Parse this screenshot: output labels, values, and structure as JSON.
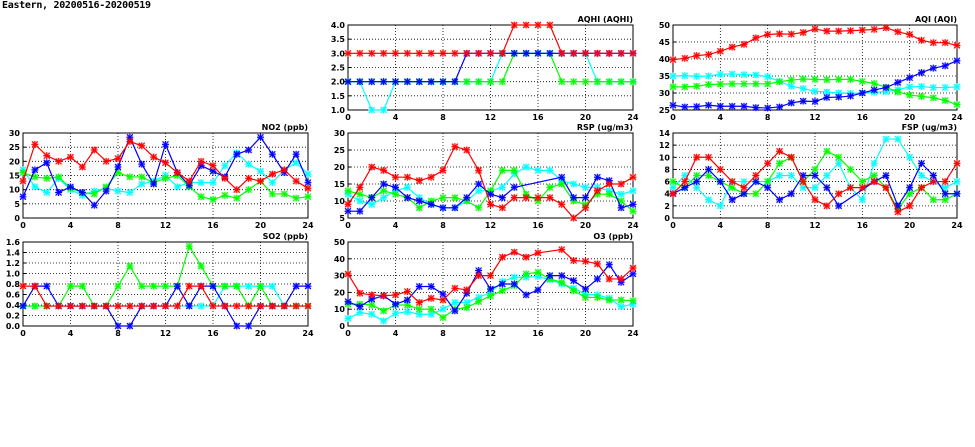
{
  "page_title": "Eastern, 20200516-20200519",
  "chart_data": [
    {
      "type": "line",
      "title": "AQHI (AQHI)",
      "xlim": [
        0,
        24
      ],
      "xticks": [
        0,
        4,
        8,
        12,
        16,
        20,
        24
      ],
      "ylim": [
        1,
        4
      ],
      "yticks": [
        "1.0",
        "1.5",
        "2.0",
        "2.5",
        "3.0",
        "3.5",
        "4.0"
      ],
      "grid": true,
      "series": [
        {
          "color": "#00ffff",
          "values": [
            2,
            2,
            1,
            1,
            2,
            2,
            2,
            2,
            2,
            2,
            2,
            2,
            2,
            3,
            3,
            3,
            3,
            3,
            3,
            3,
            3,
            2,
            2,
            2,
            2
          ]
        },
        {
          "color": "#00ff00",
          "values": [
            2,
            2,
            2,
            2,
            2,
            2,
            2,
            2,
            2,
            2,
            2,
            2,
            2,
            2,
            3,
            3,
            3,
            3,
            2,
            2,
            2,
            2,
            2,
            2,
            2
          ]
        },
        {
          "color": "#0000ff",
          "values": [
            2,
            2,
            2,
            2,
            2,
            2,
            2,
            2,
            2,
            2,
            3,
            3,
            3,
            3,
            3,
            3,
            3,
            3,
            3,
            3,
            3,
            3,
            3,
            3,
            3
          ]
        },
        {
          "color": "#ff0000",
          "values": [
            3,
            3,
            3,
            3,
            3,
            3,
            3,
            3,
            3,
            3,
            3,
            3,
            3,
            3,
            4,
            4,
            4,
            4,
            3,
            3,
            3,
            3,
            3,
            3,
            3
          ]
        }
      ]
    },
    {
      "type": "line",
      "title": "AQI (AQI)",
      "xlim": [
        0,
        24
      ],
      "xticks": [
        0,
        4,
        8,
        12,
        16,
        20,
        24
      ],
      "ylim": [
        25,
        50
      ],
      "yticks": [
        "25",
        "30",
        "35",
        "40",
        "45",
        "50"
      ],
      "grid": true,
      "series": [
        {
          "color": "#00ffff",
          "values": [
            35,
            35.1,
            34.9,
            35,
            35.5,
            35.6,
            35.4,
            35.3,
            34.8,
            33.4,
            32,
            31.3,
            30.5,
            30.3,
            30,
            29.9,
            30,
            30.2,
            30.4,
            31,
            31.8,
            31.9,
            31.6,
            31.6,
            31.8
          ]
        },
        {
          "color": "#00ff00",
          "values": [
            31.8,
            31.8,
            32,
            32.5,
            32.6,
            32.7,
            32.7,
            32.7,
            32.7,
            33.3,
            33.8,
            34.1,
            34,
            33.9,
            34,
            34,
            33.4,
            32.8,
            31.7,
            30.3,
            29.4,
            29,
            28.6,
            27.8,
            26.6
          ]
        },
        {
          "color": "#0000ff",
          "values": [
            26.4,
            25.9,
            26,
            26.4,
            26.1,
            26.1,
            26.1,
            25.7,
            25.6,
            25.9,
            27.1,
            27.6,
            27.5,
            28.7,
            28.8,
            29.1,
            30,
            30.9,
            31.6,
            33.1,
            34.5,
            36,
            37.3,
            38,
            39.5
          ]
        },
        {
          "color": "#ff0000",
          "values": [
            39.8,
            40.2,
            41,
            41.3,
            42.3,
            43.5,
            44.3,
            46.2,
            47.2,
            47.4,
            47.3,
            47.8,
            48.8,
            48.2,
            48.2,
            48.3,
            48.5,
            48.7,
            49.2,
            48,
            47.2,
            45.5,
            44.8,
            44.8,
            44
          ]
        }
      ]
    },
    {
      "type": "line",
      "title": "NO2 (ppb)",
      "xlim": [
        0,
        24
      ],
      "xticks": [
        0,
        4,
        8,
        12,
        16,
        20,
        24
      ],
      "ylim": [
        0,
        30
      ],
      "yticks": [
        "0",
        "5",
        "10",
        "15",
        "20",
        "25",
        "30"
      ],
      "grid": true,
      "series": [
        {
          "color": "#00ffff",
          "values": [
            17,
            11,
            9,
            14,
            10,
            8,
            9.5,
            10.5,
            9.5,
            9,
            12,
            13,
            15,
            11,
            12.5,
            12.5,
            12.5,
            18.5,
            23,
            19,
            16.5,
            12.5,
            17,
            19.5,
            15.5
          ]
        },
        {
          "color": "#00ff00",
          "values": [
            16,
            14.5,
            14,
            14.5,
            10.5,
            9,
            8.5,
            11,
            16,
            14.5,
            14.5,
            12.5,
            14,
            15,
            11,
            7.5,
            6.5,
            8,
            7,
            10,
            13,
            8.5,
            8.5,
            7,
            7.5
          ]
        },
        {
          "color": "#0000ff",
          "values": [
            7.5,
            17,
            19.5,
            9,
            11,
            9,
            4.5,
            9.5,
            18,
            28.5,
            19,
            12,
            26,
            16,
            11.5,
            18.5,
            16.5,
            14.5,
            22.5,
            24,
            28.5,
            22.5,
            16,
            22.5,
            12.5
          ]
        },
        {
          "color": "#ff0000",
          "values": [
            13,
            26,
            22,
            20,
            21.5,
            18,
            24,
            20,
            21,
            27,
            25.5,
            21.5,
            19.5,
            16,
            13,
            20,
            18.5,
            14,
            10,
            14,
            13,
            15.5,
            17,
            13,
            10.5
          ]
        }
      ]
    },
    {
      "type": "line",
      "title": "RSP (ug/m3)",
      "xlim": [
        0,
        24
      ],
      "xticks": [
        0,
        4,
        8,
        12,
        16,
        20,
        24
      ],
      "ylim": [
        5,
        30
      ],
      "yticks": [
        "5",
        "10",
        "15",
        "20",
        "25",
        "30"
      ],
      "grid": true,
      "series": [
        {
          "color": "#00ffff",
          "values": [
            12,
            10,
            9,
            11,
            13,
            14,
            11,
            9,
            8,
            8,
            10,
            13,
            13,
            14,
            18,
            20,
            19,
            19,
            16,
            15,
            14,
            14,
            13,
            12,
            13
          ]
        },
        {
          "color": "#00ff00",
          "values": [
            13,
            12,
            11,
            13,
            12,
            11,
            8,
            10,
            11,
            11,
            10,
            8,
            13,
            19,
            19,
            12,
            10,
            14,
            15,
            10,
            9,
            12,
            12,
            10,
            7
          ]
        },
        {
          "color": "#0000ff",
          "values": [
            7,
            7,
            11,
            15,
            14,
            11,
            10,
            9,
            8,
            8,
            11,
            15,
            12,
            11,
            14,
            null,
            null,
            null,
            17,
            11,
            11,
            17,
            16,
            8,
            9
          ]
        },
        {
          "color": "#ff0000",
          "values": [
            9,
            14,
            20,
            19,
            17,
            17,
            16,
            17,
            19,
            26,
            25,
            19,
            9,
            8,
            11,
            11,
            11,
            11,
            9,
            5,
            8,
            13,
            15,
            15,
            17
          ]
        }
      ]
    },
    {
      "type": "line",
      "title": "FSP (ug/m3)",
      "xlim": [
        0,
        24
      ],
      "xticks": [
        0,
        4,
        8,
        12,
        16,
        20,
        24
      ],
      "ylim": [
        0,
        14
      ],
      "yticks": [
        "0",
        "2",
        "4",
        "6",
        "8",
        "10",
        "12",
        "14"
      ],
      "grid": true,
      "series": [
        {
          "color": "#00ffff",
          "values": [
            5,
            7,
            5,
            3,
            2,
            6,
            6,
            6,
            6,
            7,
            7,
            5,
            5,
            7,
            9,
            5,
            3,
            9,
            13,
            13,
            10,
            7,
            6,
            5,
            6
          ]
        },
        {
          "color": "#00ff00",
          "values": [
            6,
            5,
            7,
            7,
            6,
            5,
            4,
            4,
            6,
            9,
            10,
            6,
            8,
            11,
            10,
            8,
            6,
            7,
            5,
            1.5,
            4,
            5,
            3,
            3,
            4
          ]
        },
        {
          "color": "#0000ff",
          "values": [
            4,
            5,
            6,
            8,
            6,
            3,
            4,
            6,
            5,
            3,
            4,
            7,
            7,
            5,
            2,
            null,
            null,
            6,
            7,
            2,
            5,
            9,
            7,
            4,
            4
          ]
        },
        {
          "color": "#ff0000",
          "values": [
            4,
            6,
            10,
            10,
            8,
            6,
            5,
            7,
            9,
            11,
            10,
            6,
            3,
            2,
            4,
            5,
            5,
            6,
            5,
            1,
            2,
            5,
            6,
            6,
            9
          ]
        }
      ]
    },
    {
      "type": "line",
      "title": "SO2 (ppb)",
      "xlim": [
        0,
        24
      ],
      "xticks": [
        0,
        4,
        8,
        12,
        16,
        20,
        24
      ],
      "ylim": [
        0,
        1.6
      ],
      "yticks": [
        "0.0",
        "0.2",
        "0.4",
        "0.6",
        "0.8",
        "1.0",
        "1.2",
        "1.4",
        "1.6"
      ],
      "grid": true,
      "series": [
        {
          "color": "#00ffff",
          "values": [
            0.38,
            0.38,
            0.38,
            0.38,
            0.38,
            0.38,
            0.38,
            0.38,
            0.38,
            0.38,
            0.38,
            0.38,
            0.38,
            0.38,
            0.38,
            0.38,
            0.38,
            0.76,
            0.76,
            0.76,
            0.76,
            0.76,
            0.38,
            0.38,
            0.38
          ]
        },
        {
          "color": "#00ff00",
          "values": [
            0.38,
            0.38,
            0.38,
            0.38,
            0.76,
            0.76,
            0.38,
            0.38,
            0.76,
            1.14,
            0.76,
            0.76,
            0.76,
            0.76,
            1.52,
            1.14,
            0.76,
            0.76,
            0.76,
            0.38,
            0.76,
            0.38,
            0.38,
            0.38,
            0.38
          ]
        },
        {
          "color": "#0000ff",
          "values": [
            0.38,
            0.76,
            0.76,
            0.38,
            0.38,
            0.38,
            0.38,
            0.38,
            0,
            0,
            0.38,
            0.38,
            0.38,
            0.76,
            0.38,
            0.76,
            0.76,
            0.38,
            0,
            0,
            0.38,
            0.38,
            0.38,
            0.76,
            0.76
          ]
        },
        {
          "color": "#ff0000",
          "values": [
            0.76,
            0.76,
            0.38,
            0.38,
            0.38,
            0.38,
            0.38,
            0.38,
            0.38,
            0.38,
            0.38,
            0.38,
            0.38,
            0.38,
            0.76,
            0.76,
            0.38,
            0.38,
            0.38,
            0.38,
            0.38,
            0.38,
            0.38,
            0.38,
            0.38
          ]
        }
      ]
    },
    {
      "type": "line",
      "title": "O3 (ppb)",
      "xlim": [
        0,
        24
      ],
      "xticks": [
        0,
        4,
        8,
        12,
        16,
        20,
        24
      ],
      "ylim": [
        0,
        50
      ],
      "yticks": [
        "0",
        "10",
        "20",
        "30",
        "40",
        "50"
      ],
      "grid": true,
      "series": [
        {
          "color": "#00ffff",
          "values": [
            4.5,
            8,
            7,
            3,
            7.5,
            8.5,
            7,
            7,
            10,
            14,
            14,
            17,
            20,
            26.5,
            29,
            29,
            29.5,
            27.5,
            25,
            22.5,
            19,
            18.5,
            16.5,
            11.5,
            13
          ]
        },
        {
          "color": "#00ff00",
          "values": [
            13,
            13,
            12.5,
            9,
            12.5,
            12.5,
            10,
            10,
            5,
            10,
            11,
            14.5,
            18,
            21,
            24,
            31,
            32,
            28,
            26,
            21,
            17,
            17,
            15.5,
            15.5,
            15
          ]
        },
        {
          "color": "#0000ff",
          "values": [
            14.5,
            11.5,
            16,
            18,
            13,
            15.5,
            23.5,
            23.5,
            19,
            9,
            19.5,
            33,
            22,
            25,
            25,
            18.5,
            21.5,
            30,
            30,
            27,
            22,
            28,
            36.5,
            26,
            31
          ]
        },
        {
          "color": "#ff0000",
          "values": [
            31,
            19.5,
            18.5,
            18,
            18.5,
            20.5,
            14,
            16.5,
            15.5,
            22.5,
            21.5,
            30,
            30,
            41,
            44,
            41,
            43.5,
            null,
            45.5,
            39,
            38.5,
            37,
            28,
            28,
            34.5
          ]
        }
      ]
    }
  ]
}
